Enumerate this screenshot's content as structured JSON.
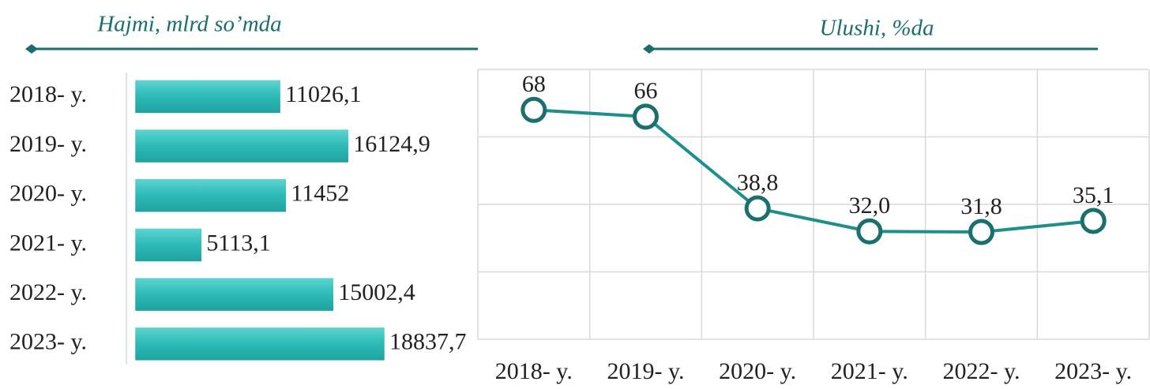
{
  "chart_data": [
    {
      "type": "bar",
      "orientation": "horizontal",
      "title": "Hajmi, mlrd so’mda",
      "categories": [
        "2018- y.",
        "2019- y.",
        "2020- y.",
        "2021- y.",
        "2022- y.",
        "2023- y."
      ],
      "values": [
        11026.1,
        16124.9,
        11452,
        5113.1,
        15002.4,
        18837.7
      ],
      "value_labels": [
        "11026,1",
        "16124,9",
        "11452",
        "5113,1",
        "15002,4",
        "18837,7"
      ],
      "color": "#2dbab7"
    },
    {
      "type": "line",
      "title": "Ulushi, %da",
      "categories": [
        "2018- y.",
        "2019- y.",
        "2020- y.",
        "2021- y.",
        "2022- y.",
        "2023- y."
      ],
      "values": [
        68,
        66,
        38.8,
        32.0,
        31.8,
        35.1
      ],
      "value_labels": [
        "68",
        "66",
        "38,8",
        "32,0",
        "31,8",
        "35,1"
      ],
      "ylim": [
        0,
        80
      ],
      "yticks": [
        0,
        20,
        40,
        60,
        80
      ],
      "grid": true,
      "color": "#1e8f8a"
    }
  ]
}
